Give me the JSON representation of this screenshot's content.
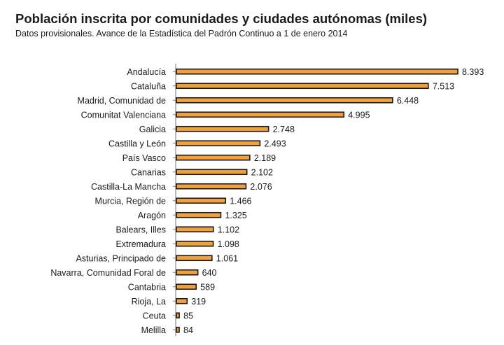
{
  "chart_data": {
    "type": "bar",
    "orientation": "horizontal",
    "title": "Población inscrita por comunidades y ciudades autónomas (miles)",
    "subtitle": "Datos provisionales. Avance de la Estadística del Padrón Continuo a 1 de enero 2014",
    "categories": [
      "Andalucía",
      "Cataluña",
      "Madrid, Comunidad de",
      "Comunitat Valenciana",
      "Galicia",
      "Castilla y León",
      "País Vasco",
      "Canarias",
      "Castilla-La Mancha",
      "Murcia, Región de",
      "Aragón",
      "Balears, Illes",
      "Extremadura",
      "Asturias, Principado de",
      "Navarra, Comunidad Foral de",
      "Cantabria",
      "Rioja, La",
      "Ceuta",
      "Melilla"
    ],
    "values": [
      8393,
      7513,
      6448,
      4995,
      2748,
      2493,
      2189,
      2102,
      2076,
      1466,
      1325,
      1102,
      1098,
      1061,
      640,
      589,
      319,
      85,
      84
    ],
    "value_labels": [
      "8.393",
      "7.513",
      "6.448",
      "4.995",
      "2.748",
      "2.493",
      "2.189",
      "2.102",
      "2.076",
      "1.466",
      "1.325",
      "1.102",
      "1.098",
      "1.061",
      "640",
      "589",
      "319",
      "85",
      "84"
    ],
    "xlim": [
      0,
      8393
    ],
    "grid": false,
    "legend": "none",
    "colors": {
      "bar_fill": "#f0a03c",
      "bar_stroke": "#1a1a1a",
      "axis": "#7a7a7a",
      "text": "#1a1a1a"
    }
  }
}
